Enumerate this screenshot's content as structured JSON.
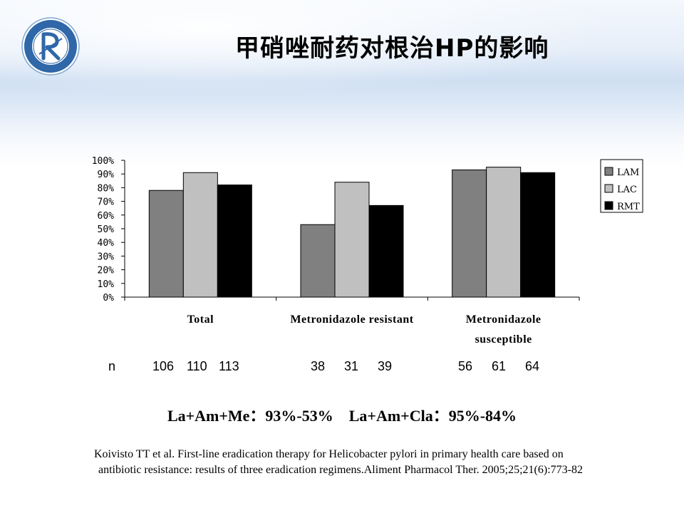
{
  "slide": {
    "title": "甲硝唑耐药对根治HP的影响",
    "logo": {
      "icon": "university-hospital-seal-icon",
      "text": "北京大学人民医院 PEKING UNIVERSITY PEOPLE'S HOSPITAL 1918"
    },
    "summary": "La+Am+Me：93%-53%    La+Am+Cla：95%-84%",
    "citation": {
      "line1": "Koivisto TT et al. First-line eradication therapy for Helicobacter pylori in primary health care based on",
      "line2": "antibiotic resistance: results of three eradication regimens.Aliment Pharmacol Ther. 2005;25;21(6):773-82"
    }
  },
  "n_row": {
    "label": "n",
    "groups": [
      [
        "106",
        "110",
        "113"
      ],
      [
        "38",
        "31",
        "39"
      ],
      [
        "56",
        "61",
        "64"
      ]
    ]
  },
  "chart_data": {
    "type": "bar",
    "categories": [
      "Total",
      "Metronidazole resistant",
      "Metronidazole susceptible"
    ],
    "category_lines": [
      [
        "Total"
      ],
      [
        "Metronidazole resistant"
      ],
      [
        "Metronidazole",
        "susceptible"
      ]
    ],
    "series": [
      {
        "name": "LAM",
        "color": "#808080",
        "values": [
          78,
          53,
          93
        ]
      },
      {
        "name": "LAC",
        "color": "#c0c0c0",
        "values": [
          91,
          84,
          95
        ]
      },
      {
        "name": "RMT",
        "color": "#000000",
        "values": [
          82,
          67,
          91
        ]
      }
    ],
    "ylim": [
      0,
      100
    ],
    "yticks": [
      "0%",
      "10%",
      "20%",
      "30%",
      "40%",
      "50%",
      "60%",
      "70%",
      "80%",
      "90%",
      "100%"
    ],
    "grid": false,
    "legend_position": "right",
    "xlabel": "",
    "ylabel": ""
  }
}
